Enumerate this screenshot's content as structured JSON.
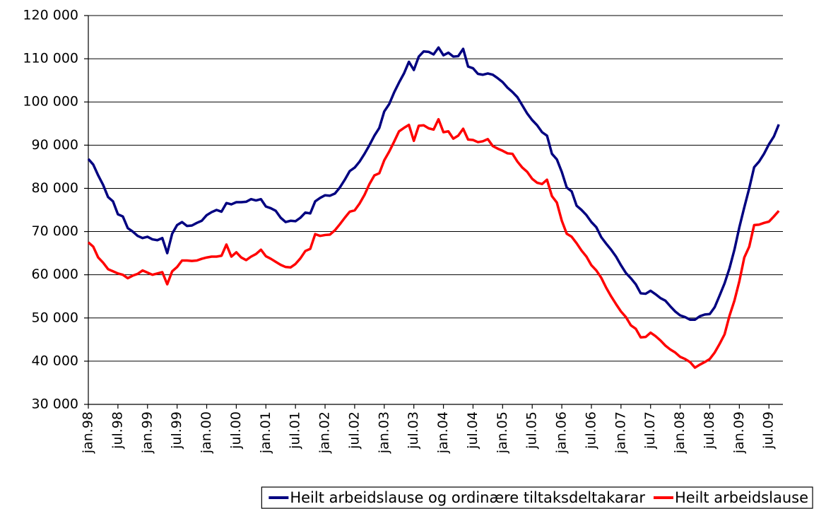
{
  "chart_data": {
    "type": "line",
    "categories": [
      "jan.98",
      null,
      null,
      null,
      null,
      null,
      "jul.98",
      null,
      null,
      null,
      null,
      null,
      "jan.99",
      null,
      null,
      null,
      null,
      null,
      "jul.99",
      null,
      null,
      null,
      null,
      null,
      "jan.00",
      null,
      null,
      null,
      null,
      null,
      "jul.00",
      null,
      null,
      null,
      null,
      null,
      "jan.01",
      null,
      null,
      null,
      null,
      null,
      "jul.01",
      null,
      null,
      null,
      null,
      null,
      "jan.02",
      null,
      null,
      null,
      null,
      null,
      "jul.02",
      null,
      null,
      null,
      null,
      null,
      "jan.03",
      null,
      null,
      null,
      null,
      null,
      "jul.03",
      null,
      null,
      null,
      null,
      null,
      "jan.04",
      null,
      null,
      null,
      null,
      null,
      "jul.04",
      null,
      null,
      null,
      null,
      null,
      "jan.05",
      null,
      null,
      null,
      null,
      null,
      "jul.05",
      null,
      null,
      null,
      null,
      null,
      "jan.06",
      null,
      null,
      null,
      null,
      null,
      "jul.06",
      null,
      null,
      null,
      null,
      null,
      "jan.07",
      null,
      null,
      null,
      null,
      null,
      "jul.07",
      null,
      null,
      null,
      null,
      null,
      "jan.08",
      null,
      null,
      null,
      null,
      null,
      "jul.08",
      null,
      null,
      null,
      null,
      null,
      "jan.09",
      null,
      null,
      null,
      null,
      null,
      "jul.09",
      null,
      null
    ],
    "series": [
      {
        "name": "Heilt arbeidslause og ordinære tiltaksdeltakarar",
        "color": "#000080",
        "values": [
          86800,
          85500,
          83000,
          80800,
          78000,
          77000,
          74000,
          73500,
          70800,
          70000,
          69000,
          68500,
          68800,
          68200,
          68000,
          68500,
          65000,
          69500,
          71500,
          72200,
          71300,
          71400,
          72000,
          72500,
          73800,
          74500,
          75000,
          74600,
          76600,
          76300,
          76800,
          76800,
          76900,
          77500,
          77200,
          77500,
          75800,
          75400,
          74800,
          73200,
          72200,
          72500,
          72400,
          73200,
          74400,
          74200,
          77000,
          77800,
          78400,
          78300,
          78800,
          80200,
          82000,
          84000,
          84800,
          86200,
          88000,
          90000,
          92200,
          94000,
          97800,
          99500,
          102200,
          104500,
          106600,
          109300,
          107400,
          110500,
          111700,
          111600,
          111000,
          112600,
          110800,
          111400,
          110500,
          110600,
          112300,
          108200,
          107800,
          106500,
          106300,
          106600,
          106300,
          105500,
          104600,
          103300,
          102300,
          101100,
          99200,
          97300,
          95800,
          94600,
          93000,
          92200,
          88000,
          86700,
          83800,
          80200,
          79300,
          76000,
          75000,
          73800,
          72200,
          71000,
          68700,
          67200,
          65800,
          64200,
          62200,
          60400,
          59200,
          57800,
          55700,
          55600,
          56300,
          55500,
          54600,
          54000,
          52700,
          51500,
          50600,
          50200,
          49600,
          49600,
          50400,
          50800,
          50900,
          52500,
          55200,
          58000,
          61500,
          65800,
          71000,
          75600,
          80000,
          84900,
          86200,
          88000,
          90200,
          92000,
          94800
        ]
      },
      {
        "name": "Heilt arbeidslause",
        "color": "#ff0000",
        "values": [
          67500,
          66500,
          64000,
          62800,
          61300,
          60800,
          60300,
          60000,
          59200,
          59800,
          60200,
          61000,
          60500,
          60000,
          60300,
          60600,
          57800,
          60800,
          61800,
          63300,
          63300,
          63200,
          63300,
          63700,
          64000,
          64200,
          64200,
          64400,
          67000,
          64200,
          65200,
          64000,
          63400,
          64200,
          64800,
          65800,
          64300,
          63700,
          63000,
          62300,
          61800,
          61700,
          62500,
          63800,
          65500,
          66000,
          69400,
          69000,
          69200,
          69300,
          70300,
          71700,
          73200,
          74600,
          74900,
          76500,
          78500,
          81000,
          83000,
          83500,
          86500,
          88500,
          90800,
          93200,
          94000,
          94700,
          91000,
          94500,
          94600,
          93900,
          93600,
          96000,
          93000,
          93200,
          91500,
          92200,
          93800,
          91300,
          91200,
          90700,
          90900,
          91400,
          89800,
          89200,
          88700,
          88100,
          88000,
          86200,
          84800,
          83800,
          82200,
          81300,
          81000,
          82000,
          78200,
          76700,
          72500,
          69500,
          68800,
          67300,
          65600,
          64200,
          62200,
          61000,
          59300,
          57000,
          55000,
          53200,
          51500,
          50200,
          48300,
          47500,
          45500,
          45600,
          46600,
          45800,
          44800,
          43600,
          42700,
          42000,
          41000,
          40500,
          39800,
          38500,
          39200,
          39800,
          40500,
          42000,
          44000,
          46200,
          50500,
          54000,
          58500,
          64000,
          66500,
          71500,
          71600,
          72000,
          72300,
          73500,
          74800
        ]
      }
    ],
    "ylim": [
      30000,
      120000
    ],
    "yticks": [
      {
        "value": 30000,
        "label": "30 000"
      },
      {
        "value": 40000,
        "label": "40 000"
      },
      {
        "value": 50000,
        "label": "50 000"
      },
      {
        "value": 60000,
        "label": "60 000"
      },
      {
        "value": 70000,
        "label": "70 000"
      },
      {
        "value": 80000,
        "label": "80 000"
      },
      {
        "value": 90000,
        "label": "90 000"
      },
      {
        "value": 100000,
        "label": "100 000"
      },
      {
        "value": 110000,
        "label": "110 000"
      },
      {
        "value": 120000,
        "label": "120 000"
      }
    ],
    "grid": true,
    "legend": "bottom-right"
  }
}
